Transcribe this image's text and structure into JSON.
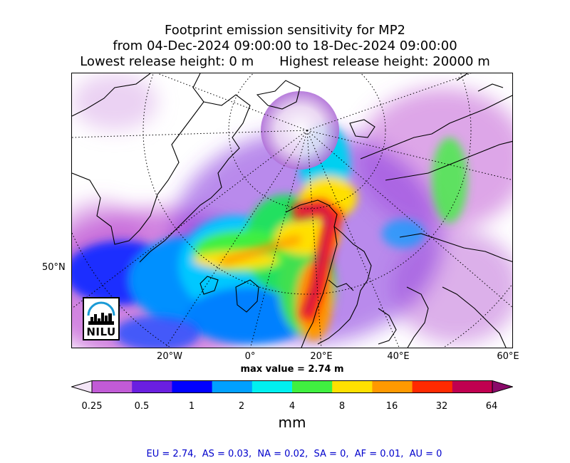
{
  "title": {
    "line1": "Footprint emission sensitivity for MP2",
    "line2": "from 04-Dec-2024 09:00:00 to 18-Dec-2024 09:00:00",
    "lowest": "Lowest release height: 0 m",
    "highest": "Highest release height: 20000 m"
  },
  "map": {
    "lat_labels": [
      "50°N"
    ],
    "lon_labels": [
      "20°W",
      "0°",
      "20°E",
      "40°E",
      "60°E"
    ],
    "max_value": "max value = 2.74 m"
  },
  "logo": {
    "text": "NILU",
    "color": "#1a9ad6"
  },
  "colorbar": {
    "ticks": [
      "0.25",
      "0.5",
      "1",
      "2",
      "4",
      "8",
      "16",
      "32",
      "64"
    ],
    "unit": "mm",
    "colors": [
      "#f4e6f7",
      "#c15bd6",
      "#6a1fe0",
      "#0000ff",
      "#00a0ff",
      "#00f0f0",
      "#40f040",
      "#ffe000",
      "#ff9900",
      "#ff2a00",
      "#c00050",
      "#8a0a6a"
    ]
  },
  "summary": "EU = 2.74,  AS = 0.03,  NA = 0.02,  SA = 0,  AF = 0.01,  AU = 0"
}
